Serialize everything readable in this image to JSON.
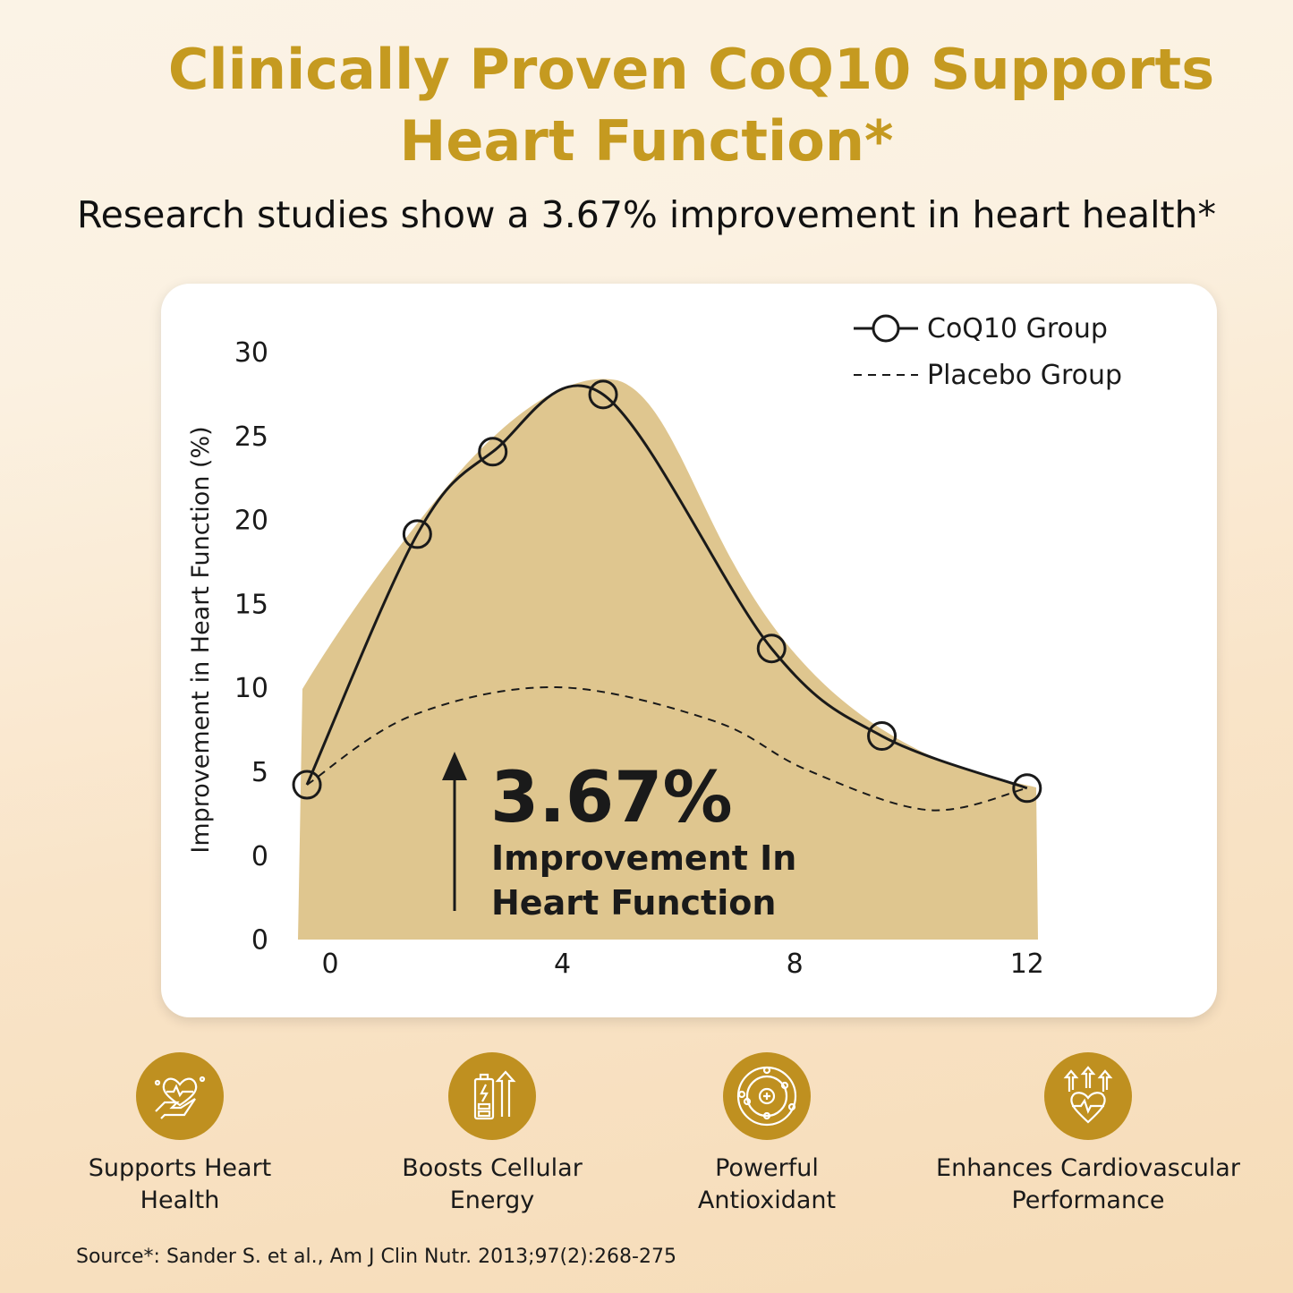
{
  "header": {
    "title_line1": "Clinically Proven CoQ10 Supports",
    "title_line2": "Heart Function*",
    "subtitle": "Research studies show a 3.67% improvement in heart health*"
  },
  "chart_data": {
    "type": "line",
    "ylabel": "Improvement in Heart Function (%)",
    "xlabel": "",
    "y_tick_labels": [
      "30",
      "25",
      "20",
      "15",
      "10",
      "5",
      "0",
      "0"
    ],
    "x_tick_labels": [
      "0",
      "4",
      "8",
      "12"
    ],
    "xlim": [
      -0.5,
      12.2
    ],
    "ylim": [
      -5,
      30
    ],
    "grid": false,
    "legend_position": "top-right",
    "series": [
      {
        "name": "CoQ10 Group",
        "style": "solid-with-circle-markers",
        "x": [
          -0.4,
          1.5,
          2.8,
          4.7,
          7.6,
          9.5,
          12.0
        ],
        "y": [
          4.2,
          19.1,
          24.0,
          27.4,
          12.3,
          7.1,
          4.0
        ]
      },
      {
        "name": "Placebo Group",
        "style": "dashed",
        "x": [
          -0.4,
          1.4,
          3.9,
          6.6,
          8.2,
          10.3,
          12.0
        ],
        "y": [
          4.2,
          8.3,
          10.0,
          8.0,
          5.1,
          2.7,
          4.0
        ]
      }
    ],
    "annotation": {
      "value": "3.67%",
      "line1": "Improvement In",
      "line2": "Heart Function"
    },
    "colors": {
      "fill": "#dfc68f",
      "line": "#1a1a1a"
    }
  },
  "features": [
    {
      "icon": "heart-in-hand-icon",
      "label_line1": "Supports Heart",
      "label_line2": "Health"
    },
    {
      "icon": "battery-energy-icon",
      "label_line1": "Boosts Cellular",
      "label_line2": "Energy"
    },
    {
      "icon": "antioxidant-atom-icon",
      "label_line1": "Powerful",
      "label_line2": "Antioxidant"
    },
    {
      "icon": "heart-arrows-up-icon",
      "label_line1": "Enhances Cardiovascular",
      "label_line2": "Performance"
    }
  ],
  "source": "Source*: Sander S. et al., Am J Clin Nutr. 2013;97(2):268-275",
  "colors": {
    "accent": "#c59a20",
    "icon_bg": "#bf9020"
  }
}
